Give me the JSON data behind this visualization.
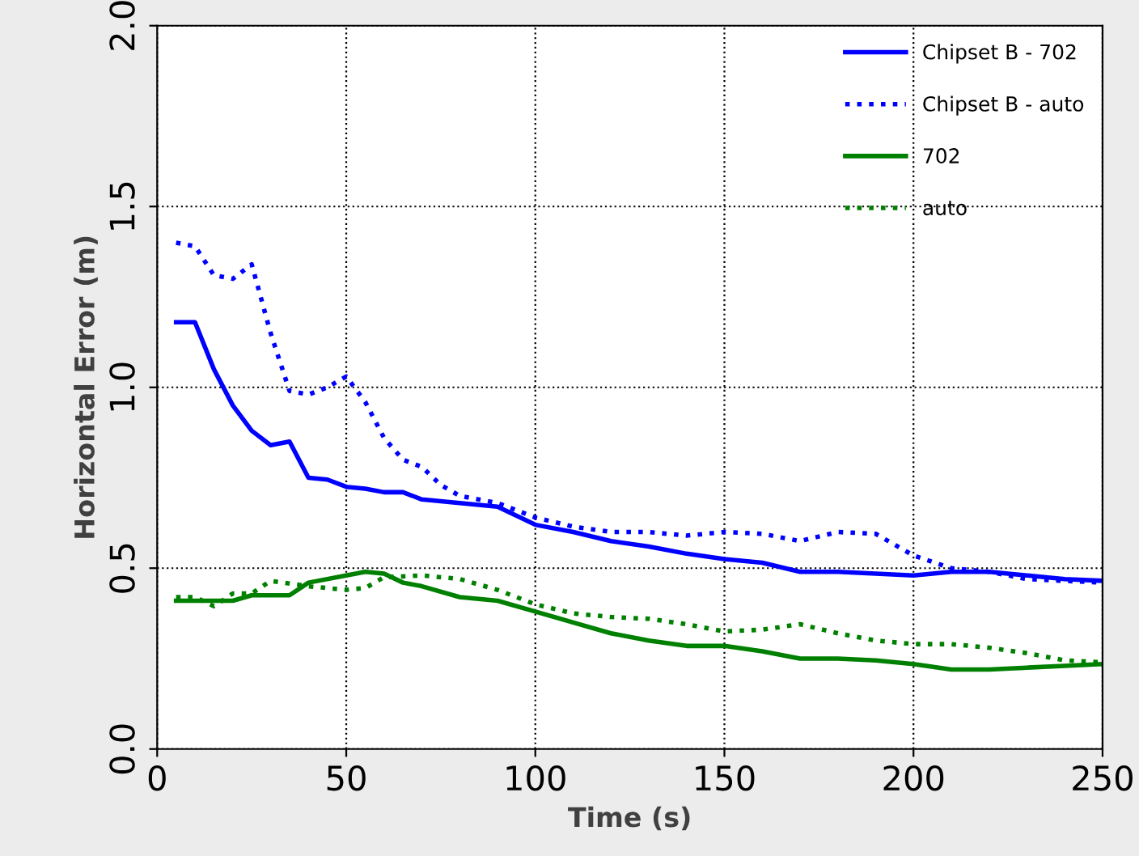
{
  "chart_data": {
    "type": "line",
    "xlabel": "Time (s)",
    "ylabel": "Horizontal Error (m)",
    "xlim": [
      0,
      250
    ],
    "ylim": [
      0,
      2.0
    ],
    "xticks": [
      0,
      50,
      100,
      150,
      200,
      250
    ],
    "yticks": [
      {
        "value": 0,
        "label": "0.0"
      },
      {
        "value": 0.5,
        "label": "0.5"
      },
      {
        "value": 1.0,
        "label": "1.0"
      },
      {
        "value": 1.5,
        "label": "1.5"
      },
      {
        "value": 2.0,
        "label": "2.0"
      }
    ],
    "grid": true,
    "legend": "top right",
    "marker": "none",
    "series": [
      {
        "name": "Chipset B - 702",
        "color": "#0000ff",
        "line_style": "solid",
        "x": [
          5,
          10,
          15,
          20,
          25,
          30,
          35,
          40,
          45,
          50,
          55,
          60,
          65,
          70,
          80,
          90,
          100,
          110,
          120,
          130,
          140,
          150,
          160,
          170,
          180,
          190,
          200,
          210,
          220,
          230,
          240,
          250
        ],
        "values": [
          1.18,
          1.18,
          1.05,
          0.95,
          0.88,
          0.84,
          0.85,
          0.75,
          0.745,
          0.725,
          0.72,
          0.71,
          0.71,
          0.69,
          0.68,
          0.67,
          0.62,
          0.6,
          0.575,
          0.56,
          0.54,
          0.525,
          0.515,
          0.49,
          0.49,
          0.485,
          0.48,
          0.49,
          0.49,
          0.48,
          0.47,
          0.465
        ]
      },
      {
        "name": "Chipset B - auto",
        "color": "#0000ff",
        "line_style": "dotted",
        "x": [
          5,
          10,
          15,
          20,
          25,
          30,
          35,
          40,
          45,
          50,
          55,
          60,
          65,
          70,
          75,
          80,
          90,
          100,
          110,
          120,
          130,
          140,
          150,
          160,
          170,
          180,
          190,
          200,
          210,
          220,
          230,
          240,
          250
        ],
        "values": [
          1.4,
          1.39,
          1.31,
          1.3,
          1.34,
          1.15,
          0.99,
          0.98,
          1.0,
          1.03,
          0.96,
          0.86,
          0.8,
          0.78,
          0.73,
          0.7,
          0.68,
          0.64,
          0.615,
          0.6,
          0.6,
          0.59,
          0.6,
          0.595,
          0.575,
          0.6,
          0.595,
          0.535,
          0.5,
          0.49,
          0.47,
          0.465,
          0.46
        ]
      },
      {
        "name": "702",
        "color": "#008000",
        "line_style": "solid",
        "x": [
          5,
          10,
          20,
          25,
          30,
          35,
          40,
          50,
          55,
          60,
          65,
          70,
          80,
          90,
          100,
          110,
          120,
          130,
          140,
          150,
          160,
          170,
          180,
          190,
          200,
          210,
          220,
          230,
          240,
          250
        ],
        "values": [
          0.41,
          0.41,
          0.41,
          0.425,
          0.425,
          0.425,
          0.46,
          0.48,
          0.49,
          0.485,
          0.46,
          0.45,
          0.42,
          0.41,
          0.38,
          0.35,
          0.32,
          0.3,
          0.285,
          0.285,
          0.27,
          0.25,
          0.25,
          0.245,
          0.235,
          0.22,
          0.22,
          0.225,
          0.23,
          0.235
        ]
      },
      {
        "name": "auto",
        "color": "#008000",
        "line_style": "dotted",
        "x": [
          5,
          10,
          15,
          20,
          25,
          30,
          40,
          50,
          55,
          60,
          70,
          80,
          90,
          100,
          110,
          120,
          130,
          140,
          150,
          160,
          170,
          180,
          190,
          200,
          210,
          220,
          230,
          240,
          250
        ],
        "values": [
          0.42,
          0.42,
          0.395,
          0.43,
          0.43,
          0.465,
          0.45,
          0.44,
          0.445,
          0.475,
          0.48,
          0.47,
          0.44,
          0.4,
          0.375,
          0.365,
          0.36,
          0.345,
          0.325,
          0.33,
          0.345,
          0.32,
          0.3,
          0.29,
          0.29,
          0.28,
          0.265,
          0.245,
          0.24
        ]
      }
    ]
  }
}
